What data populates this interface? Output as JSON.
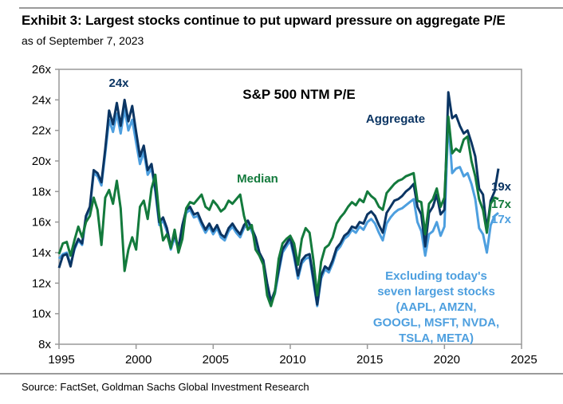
{
  "header": {
    "title": "Exhibit 3: Largest stocks continue to put upward pressure on aggregate P/E",
    "subtitle": "as of September 7, 2023"
  },
  "footer": {
    "source": "Source: FactSet, Goldman Sachs Global Investment Research"
  },
  "colors": {
    "aggregate": "#0b3563",
    "median": "#137a3c",
    "excluding": "#4d9fdf",
    "axis": "#999999"
  },
  "chart_data": {
    "type": "line",
    "title": "S&P 500 NTM P/E",
    "xlabel": "",
    "ylabel": "",
    "xlim": [
      1995,
      2025
    ],
    "ylim": [
      8,
      26
    ],
    "x_ticks": [
      1995,
      2000,
      2005,
      2010,
      2015,
      2020,
      2025
    ],
    "x_tick_labels": [
      "1995",
      "2000",
      "2005",
      "2010",
      "2015",
      "2020",
      "2025"
    ],
    "y_ticks": [
      8,
      10,
      12,
      14,
      16,
      18,
      20,
      22,
      24,
      26
    ],
    "y_tick_labels": [
      "8x",
      "10x",
      "12x",
      "14x",
      "16x",
      "18x",
      "20x",
      "22x",
      "24x",
      "26x"
    ],
    "grid": false,
    "annotations": {
      "peak_label": "24x",
      "aggregate_label": "Aggregate",
      "median_label": "Median",
      "excluding_label": [
        "Excluding today's",
        "seven largest stocks",
        "(AAPL, AMZN,",
        "GOOGL, MSFT, NVDA,",
        "TSLA, META)"
      ],
      "end_aggregate": "19x",
      "end_median": "17x",
      "end_excluding": "17x"
    },
    "x": [
      1995.0,
      1995.25,
      1995.5,
      1995.75,
      1996.0,
      1996.25,
      1996.5,
      1996.75,
      1997.0,
      1997.25,
      1997.5,
      1997.75,
      1998.0,
      1998.25,
      1998.5,
      1998.75,
      1999.0,
      1999.25,
      1999.5,
      1999.75,
      2000.0,
      2000.25,
      2000.5,
      2000.75,
      2001.0,
      2001.25,
      2001.5,
      2001.75,
      2002.0,
      2002.25,
      2002.5,
      2002.75,
      2003.0,
      2003.25,
      2003.5,
      2003.75,
      2004.0,
      2004.25,
      2004.5,
      2004.75,
      2005.0,
      2005.25,
      2005.5,
      2005.75,
      2006.0,
      2006.25,
      2006.5,
      2006.75,
      2007.0,
      2007.25,
      2007.5,
      2007.75,
      2008.0,
      2008.25,
      2008.5,
      2008.75,
      2009.0,
      2009.25,
      2009.5,
      2009.75,
      2010.0,
      2010.25,
      2010.5,
      2010.75,
      2011.0,
      2011.25,
      2011.5,
      2011.75,
      2012.0,
      2012.25,
      2012.5,
      2012.75,
      2013.0,
      2013.25,
      2013.5,
      2013.75,
      2014.0,
      2014.25,
      2014.5,
      2014.75,
      2015.0,
      2015.25,
      2015.5,
      2015.75,
      2016.0,
      2016.25,
      2016.5,
      2016.75,
      2017.0,
      2017.25,
      2017.5,
      2017.75,
      2018.0,
      2018.25,
      2018.5,
      2018.75,
      2019.0,
      2019.25,
      2019.5,
      2019.75,
      2020.0,
      2020.25,
      2020.5,
      2020.75,
      2021.0,
      2021.25,
      2021.5,
      2021.75,
      2022.0,
      2022.25,
      2022.5,
      2022.75,
      2023.0,
      2023.25,
      2023.5
    ],
    "series": [
      {
        "name": "Aggregate",
        "values": [
          13.0,
          13.8,
          13.9,
          13.1,
          14.3,
          14.9,
          14.6,
          16.4,
          17.0,
          19.4,
          19.2,
          18.6,
          20.8,
          23.3,
          22.4,
          23.8,
          22.3,
          24.0,
          22.6,
          23.6,
          21.9,
          20.3,
          21.0,
          19.4,
          19.8,
          18.2,
          16.0,
          16.3,
          15.6,
          14.4,
          15.2,
          14.3,
          15.8,
          16.8,
          17.0,
          16.5,
          16.6,
          16.0,
          15.5,
          15.9,
          15.4,
          15.8,
          15.2,
          15.0,
          15.6,
          15.9,
          15.5,
          15.2,
          15.8,
          16.1,
          15.6,
          15.0,
          14.0,
          13.5,
          12.0,
          10.8,
          11.5,
          12.9,
          14.2,
          14.6,
          15.0,
          13.9,
          12.5,
          13.5,
          13.8,
          13.9,
          12.3,
          10.6,
          12.5,
          13.1,
          12.9,
          13.5,
          14.3,
          14.6,
          15.1,
          15.3,
          15.7,
          15.6,
          16.0,
          15.9,
          16.5,
          16.7,
          16.4,
          15.8,
          15.3,
          16.6,
          17.0,
          17.4,
          17.5,
          17.7,
          18.0,
          18.2,
          18.5,
          17.0,
          16.5,
          14.4,
          16.6,
          17.0,
          17.8,
          16.5,
          16.8,
          24.5,
          22.8,
          23.0,
          22.3,
          21.8,
          22.0,
          21.2,
          20.3,
          18.2,
          17.8,
          15.5,
          17.4,
          18.0,
          19.5,
          21.0,
          19.0
        ]
      },
      {
        "name": "Median",
        "values": [
          13.9,
          14.6,
          14.7,
          13.8,
          14.8,
          15.7,
          15.0,
          16.0,
          16.4,
          17.6,
          16.8,
          14.5,
          17.6,
          18.1,
          17.2,
          18.7,
          16.9,
          12.8,
          14.2,
          15.0,
          14.2,
          17.0,
          17.4,
          16.2,
          18.2,
          19.1,
          16.4,
          14.8,
          15.2,
          14.3,
          15.5,
          14.0,
          14.9,
          16.9,
          17.3,
          17.2,
          17.5,
          17.8,
          17.0,
          16.8,
          17.4,
          17.1,
          16.7,
          16.9,
          17.4,
          17.2,
          17.5,
          17.8,
          16.4,
          15.5,
          15.8,
          14.2,
          13.8,
          13.2,
          11.2,
          10.5,
          11.4,
          13.6,
          14.6,
          14.9,
          15.1,
          14.6,
          13.2,
          14.9,
          15.6,
          15.3,
          13.5,
          11.2,
          13.4,
          14.3,
          14.5,
          15.0,
          15.9,
          16.3,
          16.6,
          17.0,
          17.3,
          17.1,
          17.5,
          17.3,
          18.0,
          17.7,
          17.5,
          17.0,
          16.8,
          17.9,
          18.2,
          18.5,
          18.7,
          18.8,
          19.0,
          19.1,
          19.2,
          17.4,
          17.3,
          15.2,
          17.2,
          17.5,
          18.2,
          17.0,
          17.6,
          22.9,
          20.5,
          20.8,
          20.6,
          21.4,
          21.6,
          20.0,
          19.0,
          17.5,
          16.8,
          15.3,
          17.2,
          17.6,
          17.5,
          18.1,
          17.0
        ]
      },
      {
        "name": "Excluding largest seven",
        "values": [
          13.6,
          13.9,
          14.0,
          13.2,
          14.2,
          14.8,
          14.5,
          16.3,
          16.9,
          19.2,
          19.0,
          18.4,
          20.5,
          22.7,
          21.9,
          23.1,
          21.8,
          23.4,
          22.0,
          22.7,
          21.2,
          19.8,
          20.6,
          19.1,
          19.5,
          18.0,
          15.8,
          16.1,
          15.4,
          14.2,
          15.0,
          14.2,
          15.6,
          16.6,
          16.8,
          16.3,
          16.4,
          15.8,
          15.3,
          15.7,
          15.2,
          15.6,
          15.0,
          14.8,
          15.4,
          15.7,
          15.3,
          15.0,
          15.6,
          15.9,
          15.4,
          14.8,
          13.8,
          13.3,
          11.8,
          10.7,
          11.3,
          12.7,
          14.0,
          14.4,
          14.8,
          13.7,
          12.3,
          13.3,
          13.6,
          13.7,
          12.1,
          10.5,
          12.3,
          12.9,
          12.7,
          13.3,
          14.1,
          14.4,
          14.9,
          15.1,
          15.5,
          15.3,
          15.7,
          15.5,
          16.0,
          16.2,
          15.9,
          15.3,
          14.8,
          15.9,
          16.3,
          16.6,
          16.8,
          16.9,
          17.1,
          17.3,
          17.5,
          16.0,
          15.4,
          13.8,
          15.2,
          15.4,
          16.0,
          15.1,
          15.7,
          22.7,
          19.2,
          19.5,
          19.6,
          19.0,
          19.2,
          18.5,
          17.5,
          15.6,
          15.2,
          14.0,
          15.8,
          16.4,
          16.6,
          17.2,
          17.0
        ]
      }
    ]
  }
}
